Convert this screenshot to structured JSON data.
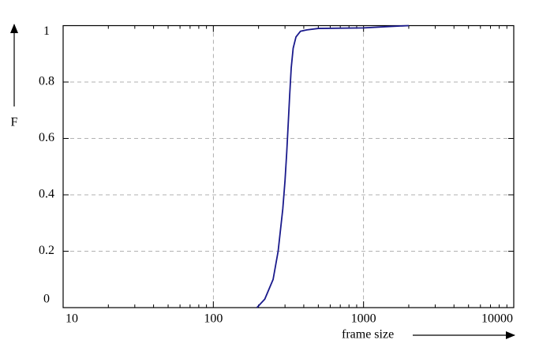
{
  "chart_data": {
    "type": "line",
    "xlabel": "frame size",
    "ylabel": "F",
    "x": [
      195,
      220,
      250,
      270,
      290,
      300,
      308,
      315,
      322,
      330,
      340,
      355,
      380,
      420,
      500,
      1000,
      1500,
      2000
    ],
    "series": [
      {
        "color": "#1a1a8c",
        "values": [
          0,
          0.03,
          0.1,
          0.2,
          0.35,
          0.45,
          0.55,
          0.65,
          0.75,
          0.85,
          0.92,
          0.96,
          0.98,
          0.985,
          0.99,
          0.992,
          0.997,
          1
        ]
      }
    ],
    "xscale": "log",
    "xlim": [
      10,
      10000
    ],
    "xticks": [
      10,
      100,
      1000,
      10000
    ],
    "ylim": [
      0,
      1
    ],
    "yticks": [
      0,
      0.2,
      0.4,
      0.6,
      0.8,
      1
    ],
    "grid": true
  }
}
